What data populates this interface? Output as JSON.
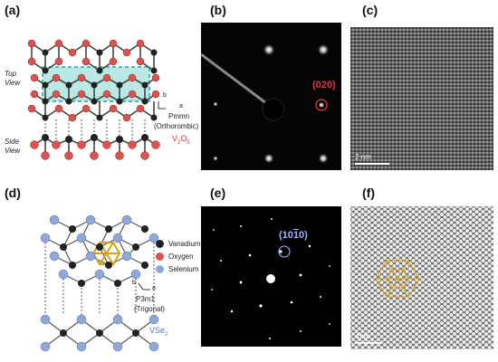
{
  "panels": {
    "a": {
      "label": "(a)",
      "top_view": "Top\nView",
      "top_view_l1": "Top",
      "top_view_l2": "View",
      "side_view_l1": "Side",
      "side_view_l2": "View",
      "axis_b": "b",
      "axis_a": "a",
      "space_group": "Pmmn",
      "crystal_system": "(Orthorombic)",
      "formula": "V",
      "formula_sub1": "2",
      "formula_o": "O",
      "formula_sub2": "5"
    },
    "b": {
      "label": "(b)",
      "spot_label": "(020)"
    },
    "c": {
      "label": "(c)",
      "scale_bar": "2 nm"
    },
    "d": {
      "label": "(d)",
      "legend": [
        "Vanadium",
        "Oxygen",
        "Selenium"
      ],
      "axis_b": "b",
      "axis_a": "a",
      "space_group": "P3m1",
      "crystal_system": "(Trigonal)",
      "formula": "VSe",
      "formula_sub": "2"
    },
    "e": {
      "label": "(e)",
      "spot_label_pre": "(10",
      "spot_label_bar": "1",
      "spot_label_post": "0)"
    },
    "f": {
      "label": "(f)",
      "scale_bar": "1nm"
    }
  },
  "colors": {
    "vanadium": "#222222",
    "oxygen": "#d9534f",
    "selenium": "#8fa8d8",
    "highlight_cyan": "#7fd6d0",
    "dashed_box": "#1aa79c",
    "red_label": "#e0353a",
    "blue_label": "#9fb4ff",
    "hexagon": "#d4a017"
  }
}
